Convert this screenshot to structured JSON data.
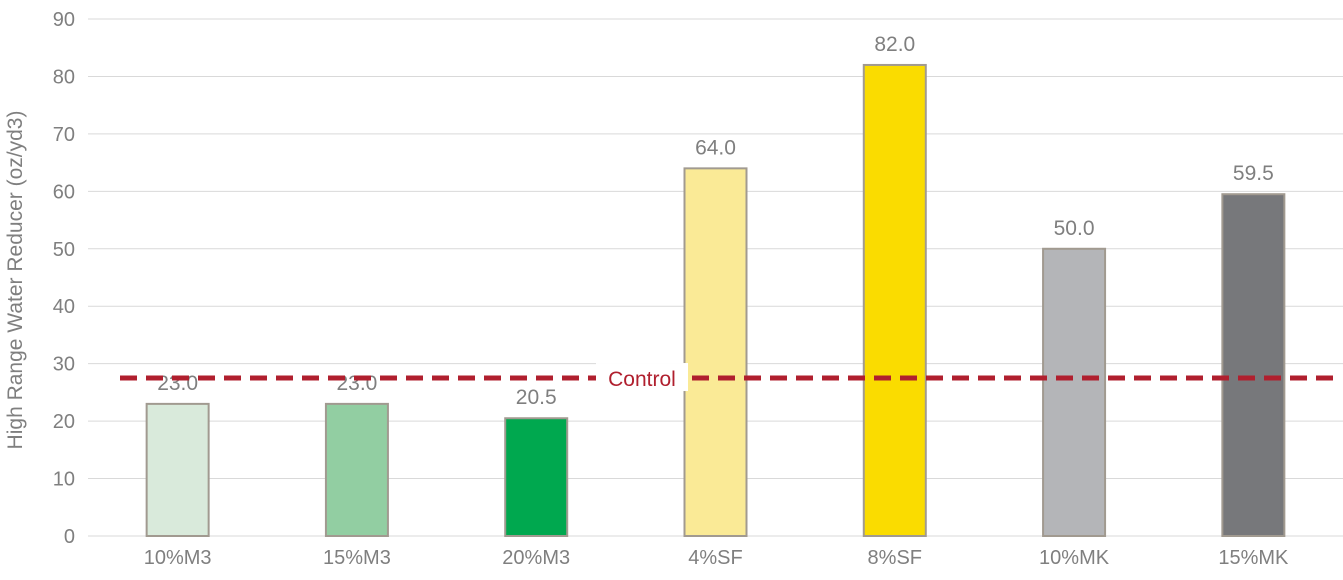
{
  "chart_data": {
    "type": "bar",
    "title": "",
    "xlabel": "",
    "ylabel": "High Range Water Reducer (oz/yd3)",
    "ylim": [
      0,
      90
    ],
    "yticks": [
      0,
      10,
      20,
      30,
      40,
      50,
      60,
      70,
      80,
      90
    ],
    "grid": true,
    "categories": [
      "10%M3",
      "15%M3",
      "20%M3",
      "4%SF",
      "8%SF",
      "10%MK",
      "15%MK"
    ],
    "values": [
      23.0,
      23.0,
      20.5,
      64.0,
      82.0,
      50.0,
      59.5
    ],
    "value_labels": [
      "23.0",
      "23.0",
      "20.5",
      "64.0",
      "82.0",
      "50.0",
      "59.5"
    ],
    "bar_colors": [
      "#d9eadb",
      "#92cea2",
      "#00a84f",
      "#faea96",
      "#fadc00",
      "#b4b5b8",
      "#77787b"
    ],
    "reference_line": {
      "label": "Control",
      "value": 27.5,
      "color": "#b01f2e",
      "style": "dashed"
    }
  }
}
